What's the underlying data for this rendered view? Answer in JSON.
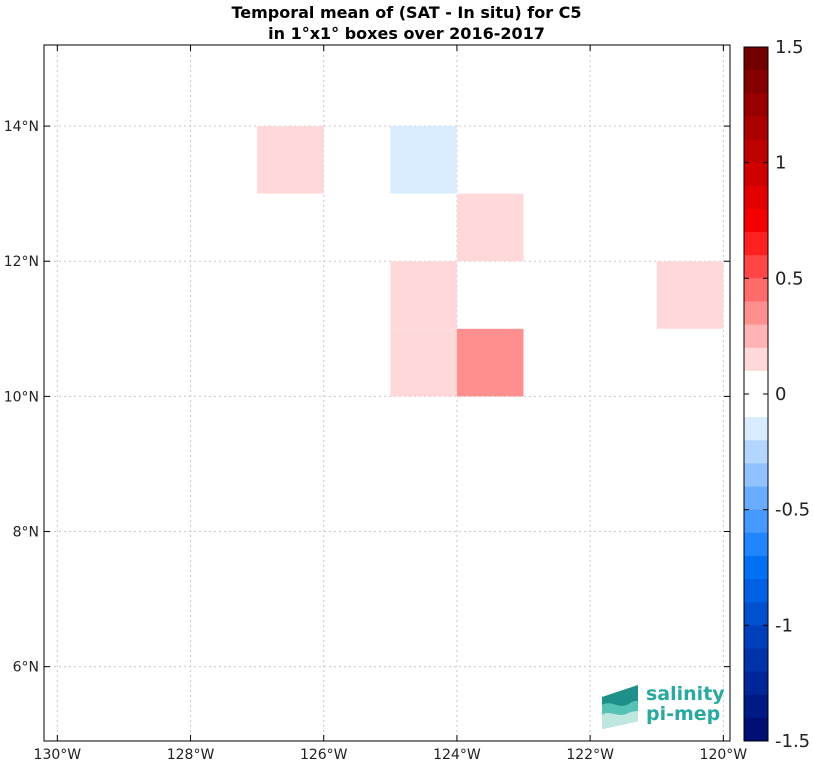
{
  "title_line1": "Temporal mean of (SAT - In situ) for C5",
  "title_line2": "in 1°x1° boxes over 2016-2017",
  "logo": {
    "line1": "salinity",
    "line2": "pi-mep",
    "icon": "salinity-pi-mep-logo-icon",
    "color": "#2aa9a0"
  },
  "chart_data": {
    "type": "heatmap",
    "title": "Temporal mean of (SAT - In situ) for C5 in 1°x1° boxes over 2016-2017",
    "xlim": [
      -130.2,
      -119.9
    ],
    "ylim": [
      4.9,
      15.2
    ],
    "x_ticks": [
      -130,
      -128,
      -126,
      -124,
      -122,
      -120
    ],
    "x_tick_labels": [
      "130°W",
      "128°W",
      "126°W",
      "124°W",
      "122°W",
      "120°W"
    ],
    "y_ticks": [
      6,
      8,
      10,
      12,
      14
    ],
    "y_tick_labels": [
      "6°N",
      "8°N",
      "10°N",
      "12°N",
      "14°N"
    ],
    "grid": true,
    "cells": [
      {
        "lon": [
          -127,
          -126
        ],
        "lat": [
          13,
          14
        ],
        "value": 0.15
      },
      {
        "lon": [
          -125,
          -124
        ],
        "lat": [
          13,
          14
        ],
        "value": -0.15
      },
      {
        "lon": [
          -124,
          -123
        ],
        "lat": [
          12,
          13
        ],
        "value": 0.15
      },
      {
        "lon": [
          -125,
          -124
        ],
        "lat": [
          11,
          12
        ],
        "value": 0.15
      },
      {
        "lon": [
          -125,
          -124
        ],
        "lat": [
          10,
          11
        ],
        "value": 0.15
      },
      {
        "lon": [
          -124,
          -123
        ],
        "lat": [
          10,
          11
        ],
        "value": 0.35
      },
      {
        "lon": [
          -121,
          -120
        ],
        "lat": [
          11,
          12
        ],
        "value": 0.15
      }
    ],
    "colorbar": {
      "range": [
        -1.5,
        1.5
      ],
      "ticks": [
        1.5,
        1,
        0.5,
        0,
        -0.5,
        -1,
        -1.5
      ],
      "tick_labels": [
        "1.5",
        "1",
        "0.5",
        "0",
        "-0.5",
        "-1",
        "-1.5"
      ],
      "colors_top_to_bottom": [
        "#730000",
        "#850000",
        "#980000",
        "#aa0000",
        "#bd0000",
        "#d00000",
        "#e30000",
        "#f50000",
        "#ff2020",
        "#ff4545",
        "#ff6a6a",
        "#ff8f8f",
        "#ffb3b3",
        "#ffd9d9",
        "#ffffff",
        "#ffffff",
        "#d9ebff",
        "#b3d6ff",
        "#8fc2ff",
        "#6aadff",
        "#4599ff",
        "#2085ff",
        "#0070f5",
        "#0060e3",
        "#0050d0",
        "#0040bd",
        "#0032aa",
        "#002598",
        "#001a85",
        "#000f73"
      ]
    }
  }
}
